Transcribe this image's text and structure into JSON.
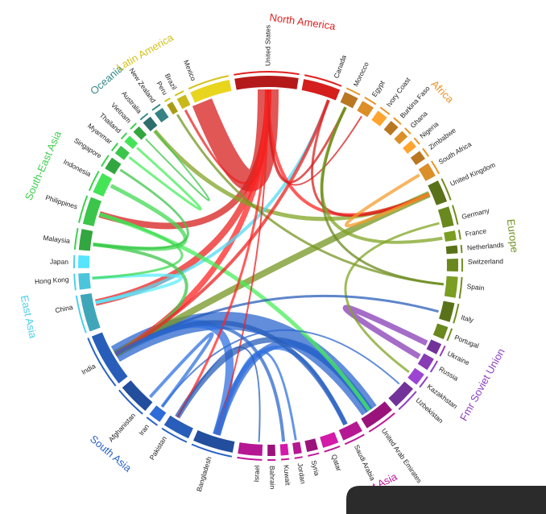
{
  "regions": [
    {
      "label": "North America",
      "color": "#e0211f",
      "countries": [
        "United States",
        "Canada"
      ]
    },
    {
      "label": "Africa",
      "color": "#e8952a",
      "countries": [
        "Morocco",
        "Egypt",
        "Ivory Coast",
        "Burkina Faso",
        "Ghana",
        "Nigeria",
        "Zimbabwe",
        "South Africa"
      ]
    },
    {
      "label": "Europe",
      "color": "#6f8f1f",
      "countries": [
        "United Kingdom",
        "Germany",
        "France",
        "Netherlands",
        "Switzerland",
        "Spain",
        "Italy",
        "Portugal"
      ]
    },
    {
      "label": "Fmr Soviet Union",
      "color": "#8e3fbf",
      "countries": [
        "Ukraine",
        "Russia",
        "Kazakhstan",
        "Uzbekistan"
      ]
    },
    {
      "label": "West Asia",
      "color": "#c0189a",
      "countries": [
        "United Arab Emirates",
        "Saudi Arabia",
        "Qatar",
        "Syria",
        "Jordan",
        "Kuwait",
        "Bahrain",
        "Israel"
      ]
    },
    {
      "label": "South Asia",
      "color": "#2a62c4",
      "countries": [
        "Bangladesh",
        "Pakistan",
        "Iran",
        "Afghanistan",
        "India"
      ]
    },
    {
      "label": "East Asia",
      "color": "#4fcfe8",
      "countries": [
        "China",
        "Hong Kong",
        "Japan"
      ]
    },
    {
      "label": "South-East Asia",
      "color": "#3fcf4f",
      "countries": [
        "Malaysia",
        "Philippines",
        "Indonesia",
        "Singapore",
        "Myanmar",
        "Thailand",
        "Vietnam"
      ]
    },
    {
      "label": "Oceania",
      "color": "#3a8a8a",
      "countries": [
        "Australia",
        "New Zealand"
      ]
    },
    {
      "label": "Latin America",
      "color": "#d4c21a",
      "countries": [
        "Peru",
        "Brazil",
        "Mexico"
      ]
    }
  ]
}
